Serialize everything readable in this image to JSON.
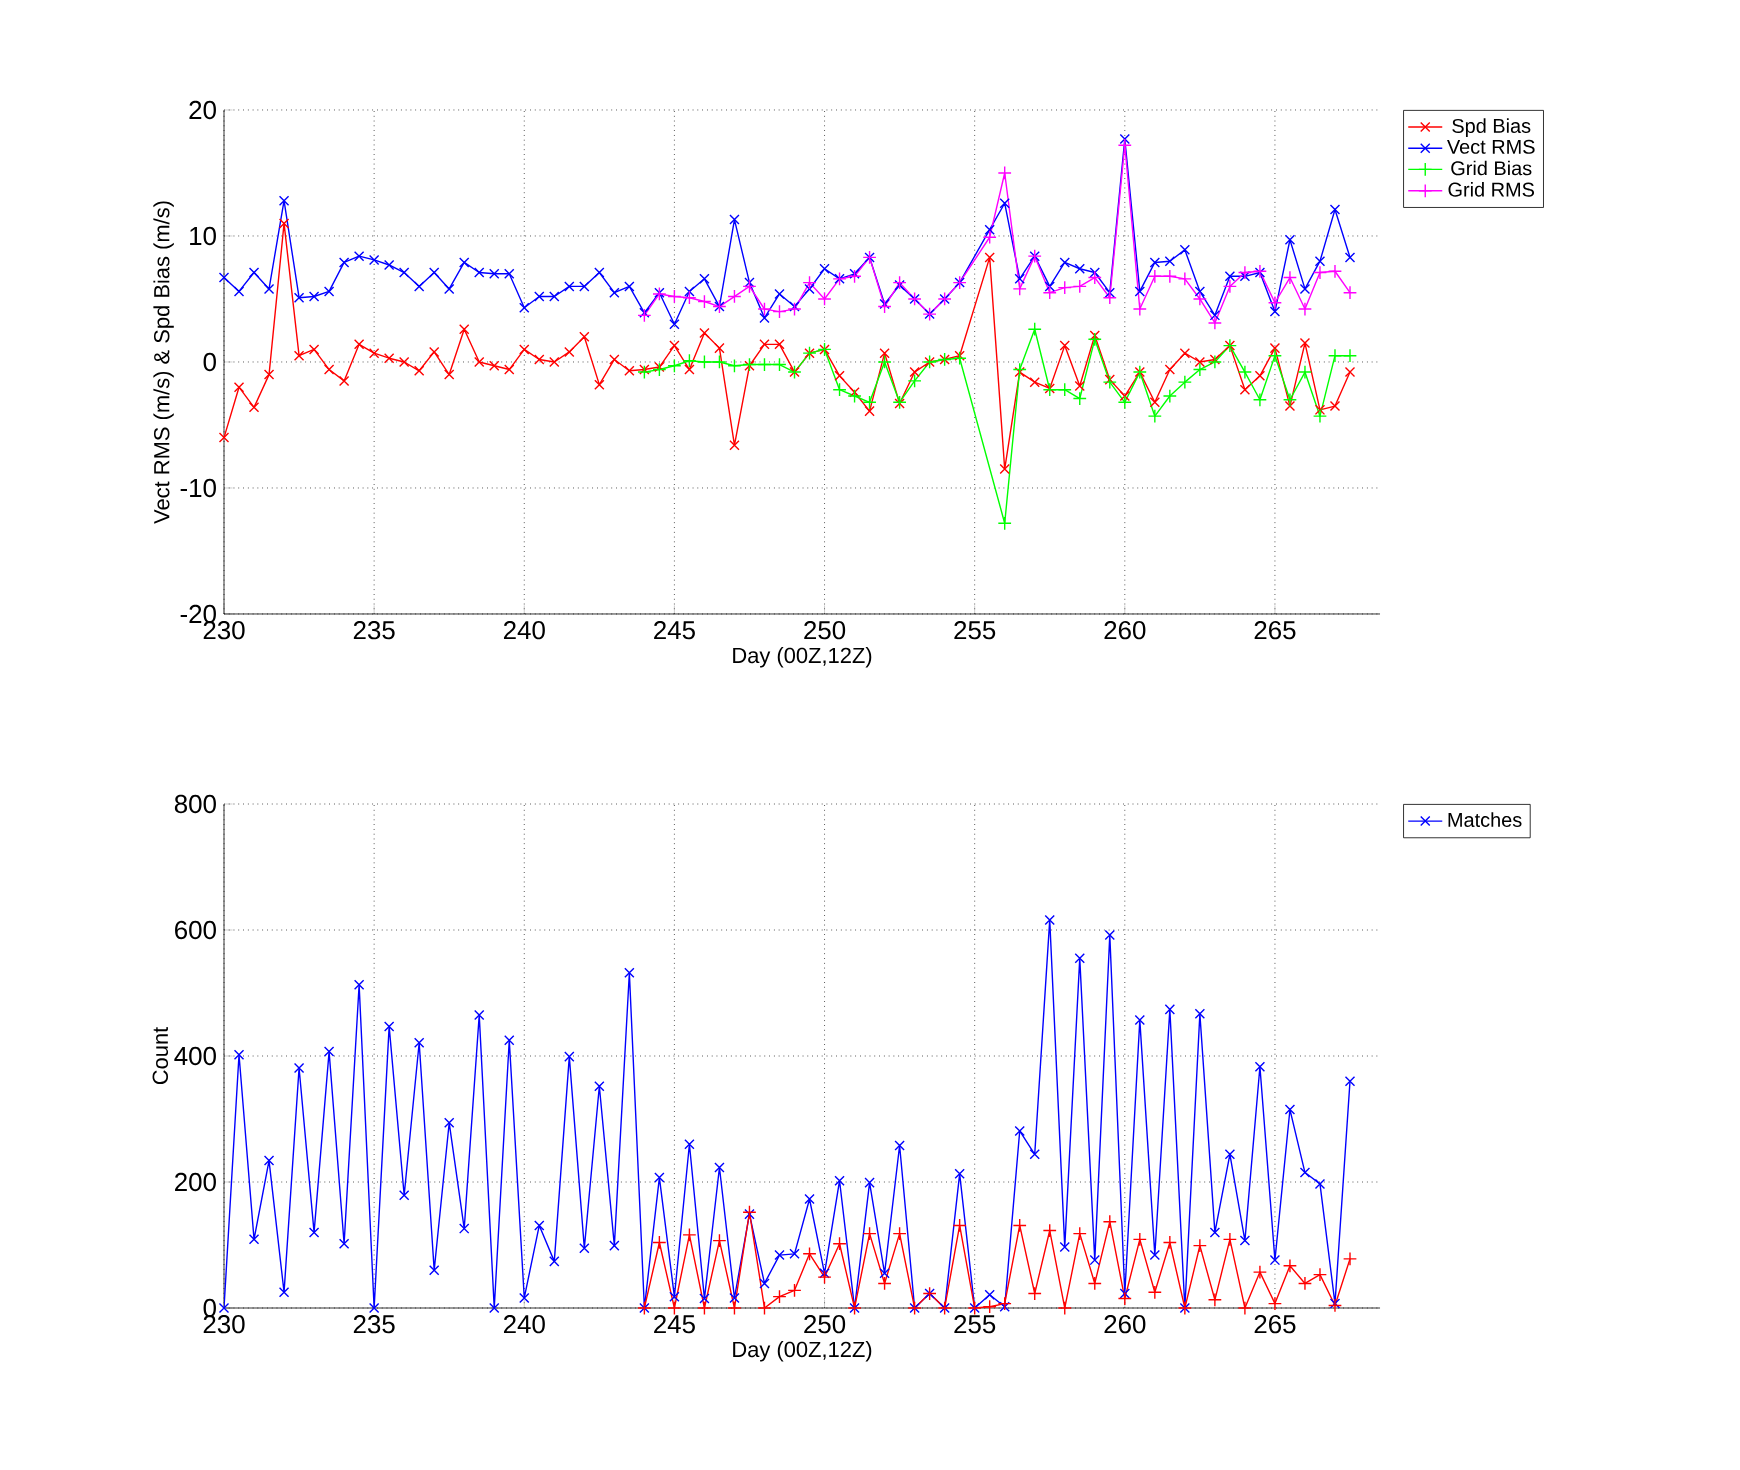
{
  "chart_data": [
    {
      "type": "line",
      "xlabel": "Day (00Z,12Z)",
      "ylabel": "Vect RMS (m/s) & Spd Bias (m/s)",
      "xlim": [
        230,
        268.5
      ],
      "ylim": [
        -20,
        20
      ],
      "xticks": [
        230,
        235,
        240,
        245,
        250,
        255,
        260,
        265
      ],
      "yticks": [
        -20,
        -10,
        0,
        10,
        20
      ],
      "grid": true,
      "legend": "right",
      "line_style": "solid",
      "x": [
        230,
        230.5,
        231,
        231.5,
        232,
        232.5,
        233,
        233.5,
        234,
        234.5,
        235,
        235.5,
        236,
        236.5,
        237,
        237.5,
        238,
        238.5,
        239,
        239.5,
        240,
        240.5,
        241,
        241.5,
        242,
        242.5,
        243,
        243.5,
        244,
        244.5,
        245,
        245.5,
        246,
        246.5,
        247,
        247.5,
        248,
        248.5,
        249,
        249.5,
        250,
        250.5,
        251,
        251.5,
        252,
        252.5,
        253,
        253.5,
        254,
        254.5,
        255.5,
        256,
        256.5,
        257,
        257.5,
        258,
        258.5,
        259,
        259.5,
        260,
        260.5,
        261,
        261.5,
        262,
        262.5,
        263,
        263.5,
        264,
        264.5,
        265,
        265.5,
        266,
        266.5,
        267,
        267.5
      ],
      "series": [
        {
          "name": "Spd Bias",
          "color": "#ff0000",
          "marker": "cross",
          "values": [
            -6.0,
            -2.0,
            -3.6,
            -1.0,
            11.0,
            0.5,
            1.0,
            -0.6,
            -1.5,
            1.4,
            0.7,
            0.3,
            0,
            -0.7,
            0.8,
            -1.0,
            2.6,
            0,
            -0.3,
            -0.6,
            1.0,
            0.2,
            0,
            0.8,
            2.0,
            -1.8,
            0.2,
            -0.7,
            -0.6,
            -0.4,
            1.3,
            -0.6,
            2.3,
            1.1,
            -6.6,
            -0.3,
            1.4,
            1.4,
            -0.8,
            0.7,
            1.0,
            -1.1,
            -2.4,
            -3.9,
            0.7,
            -3.3,
            -0.8,
            0,
            0.2,
            0.5,
            8.3,
            -8.5,
            -0.8,
            -1.6,
            -2.1,
            1.3,
            -1.9,
            2.1,
            -1.4,
            -2.7,
            -0.8,
            -3.2,
            -0.6,
            0.7,
            0,
            0.2,
            1.3,
            -2.2,
            -1.1,
            1.1,
            -3.5,
            1.5,
            -3.8,
            -3.5,
            -0.8
          ]
        },
        {
          "name": "Vect RMS",
          "color": "#0000ff",
          "marker": "cross",
          "values": [
            6.7,
            5.6,
            7.1,
            5.8,
            12.8,
            5.1,
            5.2,
            5.6,
            7.9,
            8.4,
            8.1,
            7.7,
            7.1,
            6.0,
            7.1,
            5.8,
            7.9,
            7.1,
            7.0,
            7.0,
            4.3,
            5.2,
            5.2,
            6.0,
            6.0,
            7.1,
            5.5,
            6.0,
            3.9,
            5.5,
            3.0,
            5.6,
            6.6,
            4.4,
            11.3,
            6.3,
            3.5,
            5.4,
            4.4,
            5.8,
            7.4,
            6.6,
            7.0,
            8.3,
            4.6,
            6.1,
            5.0,
            3.8,
            5.0,
            6.3,
            10.5,
            12.6,
            6.6,
            8.4,
            6.0,
            7.9,
            7.4,
            7.1,
            5.5,
            17.7,
            5.6,
            7.9,
            8.0,
            8.9,
            5.6,
            3.7,
            6.8,
            6.8,
            7.1,
            4.0,
            9.7,
            5.8,
            8.0,
            12.1,
            8.3
          ]
        },
        {
          "name": "Grid Bias",
          "color": "#00ff00",
          "marker": "plus",
          "x": [
            244,
            244.5,
            245,
            245.5,
            246,
            246.5,
            247,
            247.5,
            248,
            248.5,
            249,
            249.5,
            250,
            250.5,
            251,
            251.5,
            252,
            252.5,
            253,
            253.5,
            254,
            254.5,
            256,
            256.5,
            257,
            257.5,
            258,
            258.5,
            259,
            259.5,
            260,
            260.5,
            261,
            261.5,
            262,
            262.5,
            263,
            263.5,
            264,
            264.5,
            265,
            265.5,
            266,
            266.5,
            267,
            267.5
          ],
          "values": [
            -0.8,
            -0.6,
            -0.3,
            0.1,
            0,
            0,
            -0.3,
            -0.2,
            -0.2,
            -0.2,
            -0.8,
            0.7,
            1.0,
            -2.2,
            -2.7,
            -3.2,
            0,
            -3.2,
            -1.5,
            0,
            0.2,
            0.3,
            -12.8,
            -0.6,
            2.6,
            -2.2,
            -2.2,
            -2.9,
            1.8,
            -1.6,
            -3.2,
            -0.8,
            -4.3,
            -2.7,
            -1.6,
            -0.6,
            0,
            1.3,
            -0.8,
            -3.0,
            0.5,
            -3.0,
            -0.8,
            -4.3,
            0.5,
            0.5
          ]
        },
        {
          "name": "Grid RMS",
          "color": "#ff00ff",
          "marker": "plus",
          "x": [
            244,
            244.5,
            245,
            245.5,
            246,
            246.5,
            247,
            247.5,
            248,
            248.5,
            249,
            249.5,
            250,
            250.5,
            251,
            251.5,
            252,
            252.5,
            253,
            253.5,
            254,
            254.5,
            255.5,
            256,
            256.5,
            257,
            257.5,
            258,
            258.5,
            259,
            259.5,
            260,
            260.5,
            261,
            261.5,
            262,
            262.5,
            263,
            263.5,
            264,
            264.5,
            265,
            265.5,
            266,
            266.5,
            267,
            267.5
          ],
          "values": [
            3.7,
            5.4,
            5.2,
            5.1,
            4.8,
            4.4,
            5.2,
            6.0,
            4.2,
            4.0,
            4.2,
            6.3,
            5.0,
            6.6,
            6.8,
            8.3,
            4.4,
            6.3,
            5.0,
            3.8,
            5.0,
            6.3,
            9.9,
            15.0,
            5.8,
            8.4,
            5.5,
            5.9,
            6.0,
            6.7,
            5.1,
            17.2,
            4.2,
            6.8,
            6.8,
            6.6,
            5.0,
            3.1,
            6.0,
            7.1,
            7.2,
            4.7,
            6.7,
            4.2,
            7.1,
            7.2,
            5.5
          ]
        }
      ]
    },
    {
      "type": "line",
      "xlabel": "Day (00Z,12Z)",
      "ylabel": "Count",
      "xlim": [
        230,
        268.5
      ],
      "ylim": [
        0,
        800
      ],
      "xticks": [
        230,
        235,
        240,
        245,
        250,
        255,
        260,
        265
      ],
      "yticks": [
        0,
        200,
        400,
        600,
        800
      ],
      "grid": true,
      "legend": "right",
      "line_style": "solid",
      "x": [
        230,
        230.5,
        231,
        231.5,
        232,
        232.5,
        233,
        233.5,
        234,
        234.5,
        235,
        235.5,
        236,
        236.5,
        237,
        237.5,
        238,
        238.5,
        239,
        239.5,
        240,
        240.5,
        241,
        241.5,
        242,
        242.5,
        243,
        243.5,
        244,
        244.5,
        245,
        245.5,
        246,
        246.5,
        247,
        247.5,
        248,
        248.5,
        249,
        249.5,
        250,
        250.5,
        251,
        251.5,
        252,
        252.5,
        253,
        253.5,
        254,
        254.5,
        255,
        255.5,
        256,
        256.5,
        257,
        257.5,
        258,
        258.5,
        259,
        259.5,
        260,
        260.5,
        261,
        261.5,
        262,
        262.5,
        263,
        263.5,
        264,
        264.5,
        265,
        265.5,
        266,
        266.5,
        267,
        267.5
      ],
      "series": [
        {
          "name": "Matches",
          "color": "#0000ff",
          "marker": "cross",
          "values": [
            0,
            402,
            109,
            234,
            25,
            381,
            120,
            407,
            102,
            513,
            0,
            447,
            179,
            421,
            60,
            294,
            126,
            465,
            0,
            425,
            16,
            131,
            74,
            399,
            95,
            352,
            99,
            532,
            0,
            207,
            18,
            260,
            15,
            223,
            16,
            149,
            39,
            84,
            86,
            173,
            55,
            202,
            0,
            199,
            55,
            258,
            0,
            23,
            0,
            213,
            0,
            21,
            2,
            281,
            244,
            616,
            97,
            555,
            76,
            592,
            23,
            457,
            84,
            474,
            0,
            467,
            120,
            244,
            107,
            383,
            76,
            315,
            215,
            197,
            7,
            360
          ]
        },
        {
          "color": "#ff0000",
          "marker": "plus",
          "x": [
            244,
            244.5,
            245,
            245.5,
            246,
            246.5,
            247,
            247.5,
            248,
            248.5,
            249,
            249.5,
            250,
            250.5,
            251,
            251.5,
            252,
            252.5,
            253,
            253.5,
            254,
            254.5,
            255,
            255.5,
            256,
            256.5,
            257,
            257.5,
            258,
            258.5,
            259,
            259.5,
            260,
            260.5,
            261,
            261.5,
            262,
            262.5,
            263,
            263.5,
            264,
            264.5,
            265,
            265.5,
            266,
            266.5,
            267,
            267.5
          ],
          "values": [
            0,
            104,
            0,
            116,
            0,
            107,
            0,
            152,
            0,
            18,
            28,
            86,
            49,
            102,
            0,
            118,
            39,
            118,
            0,
            23,
            0,
            131,
            0,
            2,
            7,
            131,
            23,
            123,
            0,
            118,
            39,
            137,
            15,
            109,
            25,
            104,
            0,
            99,
            13,
            109,
            0,
            57,
            7,
            67,
            39,
            53,
            4,
            78
          ]
        }
      ]
    }
  ]
}
